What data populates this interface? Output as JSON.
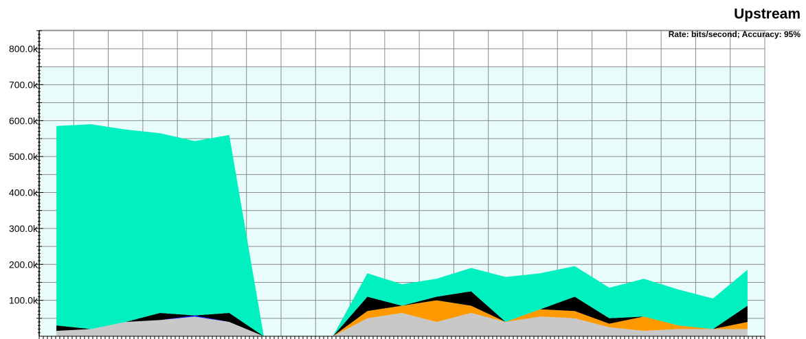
{
  "chart_data": {
    "type": "area",
    "title": "Upstream",
    "subtitle": "Rate: bits/second; Accuracy: 95%",
    "xlabel": "",
    "ylabel": "",
    "ylim": [
      0,
      800000
    ],
    "stacked": true,
    "grid": true,
    "y_ticks": [
      {
        "value": 100000,
        "label": "100.0k"
      },
      {
        "value": 200000,
        "label": "200.0k"
      },
      {
        "value": 300000,
        "label": "300.0k"
      },
      {
        "value": 400000,
        "label": "400.0k"
      },
      {
        "value": 500000,
        "label": "500.0k"
      },
      {
        "value": 600000,
        "label": "600.0k"
      },
      {
        "value": 700000,
        "label": "700.0k"
      },
      {
        "value": 800000,
        "label": "800.0k"
      }
    ],
    "series": [
      {
        "color": "#c8c8c8",
        "values": [
          15000,
          20000,
          40000,
          45000,
          55000,
          40000,
          0,
          null,
          0,
          50000,
          65000,
          40000,
          65000,
          40000,
          55000,
          50000,
          25000,
          15000,
          20000,
          20000,
          20000
        ]
      },
      {
        "color": "#ff9900",
        "values": [
          0,
          0,
          0,
          0,
          0,
          0,
          0,
          null,
          0,
          20000,
          20000,
          60000,
          20000,
          0,
          20000,
          20000,
          10000,
          40000,
          10000,
          0,
          20000
        ]
      },
      {
        "color": "#0000ff",
        "values": [
          0,
          0,
          0,
          0,
          3000,
          0,
          0,
          null,
          0,
          0,
          0,
          0,
          0,
          0,
          0,
          0,
          0,
          0,
          0,
          0,
          0
        ]
      },
      {
        "color": "#000000",
        "values": [
          15000,
          0,
          0,
          20000,
          0,
          25000,
          0,
          null,
          0,
          40000,
          0,
          10000,
          40000,
          0,
          0,
          40000,
          15000,
          0,
          0,
          0,
          45000
        ]
      },
      {
        "color": "#00f0c0",
        "values": [
          555000,
          570000,
          535000,
          500000,
          485000,
          495000,
          0,
          null,
          0,
          65000,
          60000,
          50000,
          65000,
          125000,
          100000,
          85000,
          85000,
          105000,
          100000,
          85000,
          100000
        ]
      }
    ]
  }
}
